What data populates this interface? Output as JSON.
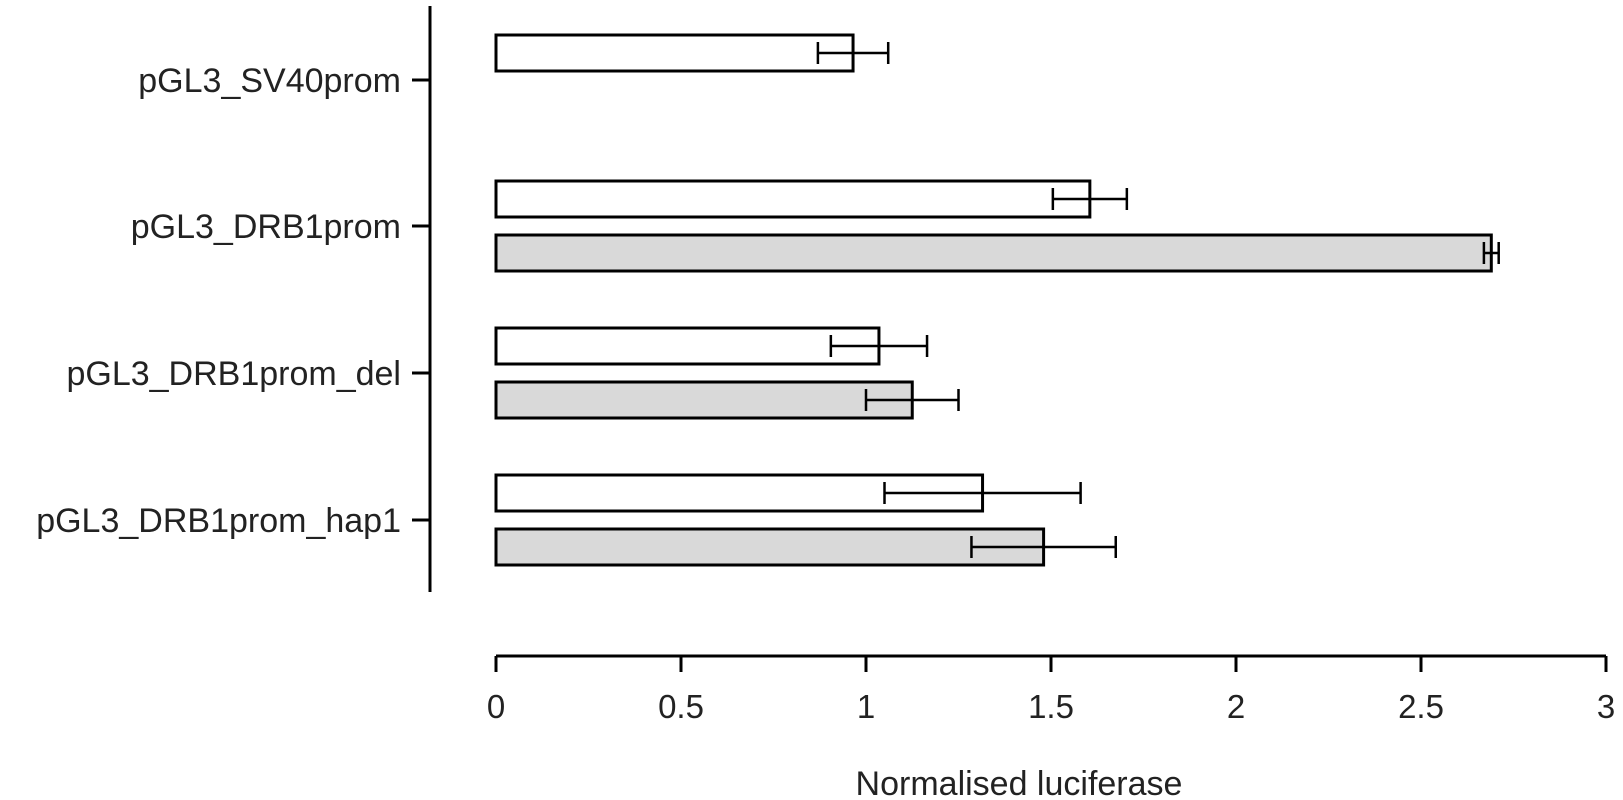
{
  "chart_data": {
    "type": "bar",
    "orientation": "horizontal",
    "title": "",
    "xlabel": "Normalised luciferase",
    "ylabel": "",
    "xlim": [
      0,
      3
    ],
    "x_ticks": [
      0,
      0.5,
      1,
      1.5,
      2,
      2.5,
      3
    ],
    "x_tick_labels": [
      "0",
      "0.5",
      "1",
      "1.5",
      "2",
      "2.5",
      "3"
    ],
    "grid": false,
    "legend": "none",
    "categories": [
      "pGL3_SV40prom",
      "pGL3_DRB1prom",
      "pGL3_DRB1prom_del",
      "pGL3_DRB1prom_hap1"
    ],
    "series": [
      {
        "fill": "#ffffff",
        "values": [
          0.965,
          1.605,
          1.035,
          1.315
        ],
        "error": [
          0.095,
          0.1,
          0.13,
          0.265
        ]
      },
      {
        "fill": "#d9d9d9",
        "values": [
          null,
          2.69,
          1.125,
          1.48
        ],
        "error": [
          null,
          0.02,
          0.125,
          0.195
        ]
      }
    ]
  }
}
